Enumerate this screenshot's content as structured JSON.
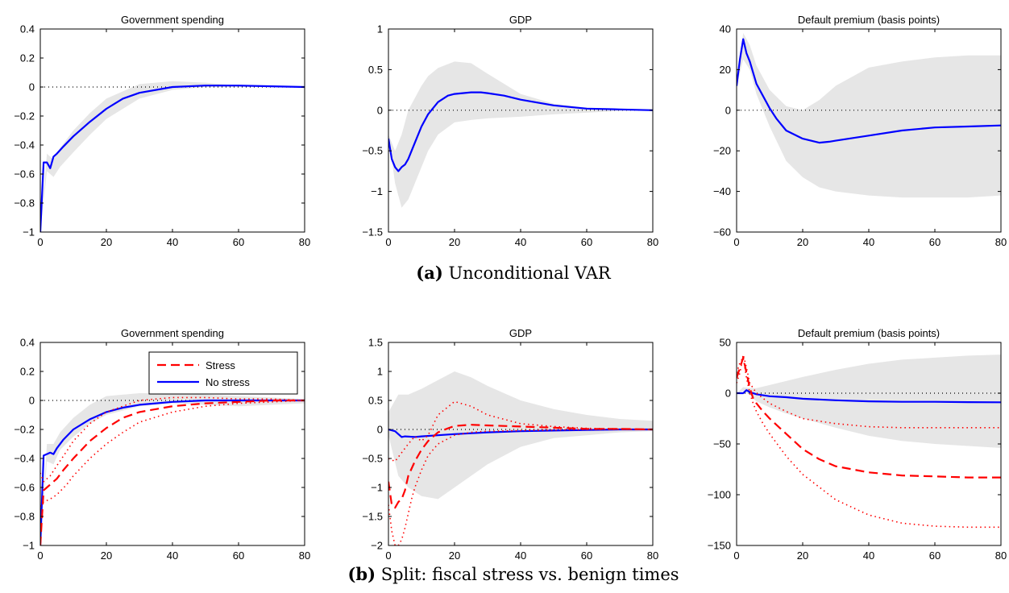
{
  "figure": {
    "caption_a_label": "(a)",
    "caption_a_text": "Unconditional VAR",
    "caption_b_label": "(b)",
    "caption_b_text": "Split: fiscal stress vs. benign times"
  },
  "colors": {
    "stress": "#ff0000",
    "nostress": "#0000ff",
    "band": "#e6e6e6",
    "axis": "#000000"
  },
  "chart_data": [
    {
      "panel": "a",
      "type": "area",
      "title": "Government spending",
      "xlim": [
        0,
        80
      ],
      "xticks": [
        0,
        20,
        40,
        60,
        80
      ],
      "ylim": [
        -1,
        0.4
      ],
      "yticks": [
        -1,
        -0.8,
        -0.6,
        -0.4,
        -0.2,
        0,
        0.2,
        0.4
      ],
      "yticklabels": [
        "−1",
        "−0.8",
        "−0.6",
        "−0.4",
        "−0.2",
        "0",
        "0.2",
        "0.4"
      ],
      "zero_line": true,
      "band": {
        "x": [
          0,
          2,
          4,
          6,
          10,
          15,
          20,
          30,
          40,
          50,
          60,
          70,
          80
        ],
        "lower": [
          -1,
          -0.58,
          -0.62,
          -0.55,
          -0.45,
          -0.33,
          -0.22,
          -0.08,
          -0.02,
          0,
          0,
          0,
          0
        ],
        "upper": [
          -1,
          -0.46,
          -0.5,
          -0.42,
          -0.3,
          -0.18,
          -0.08,
          0.02,
          0.04,
          0.03,
          0.01,
          0.005,
          0
        ]
      },
      "series": [
        {
          "color": "#0000ff",
          "style": "solid",
          "x": [
            0,
            1,
            2,
            3,
            4,
            5,
            7,
            10,
            15,
            20,
            25,
            30,
            40,
            50,
            60,
            70,
            80
          ],
          "y": [
            -1,
            -0.52,
            -0.52,
            -0.56,
            -0.48,
            -0.46,
            -0.41,
            -0.34,
            -0.24,
            -0.15,
            -0.08,
            -0.04,
            0.0,
            0.01,
            0.01,
            0.005,
            0
          ]
        }
      ]
    },
    {
      "panel": "a",
      "type": "area",
      "title": "GDP",
      "xlim": [
        0,
        80
      ],
      "xticks": [
        0,
        20,
        40,
        60,
        80
      ],
      "ylim": [
        -1.5,
        1
      ],
      "yticks": [
        -1.5,
        -1,
        -0.5,
        0,
        0.5,
        1
      ],
      "yticklabels": [
        "−1.5",
        "−1",
        "−0.5",
        "0",
        "0.5",
        "1"
      ],
      "zero_line": true,
      "band": {
        "x": [
          0,
          2,
          4,
          6,
          8,
          10,
          12,
          15,
          20,
          25,
          30,
          40,
          50,
          60,
          70,
          80
        ],
        "lower": [
          -0.3,
          -0.9,
          -1.2,
          -1.1,
          -0.9,
          -0.7,
          -0.5,
          -0.3,
          -0.15,
          -0.12,
          -0.1,
          -0.08,
          -0.05,
          -0.03,
          -0.01,
          0
        ],
        "upper": [
          -0.3,
          -0.5,
          -0.3,
          0.0,
          0.15,
          0.3,
          0.42,
          0.52,
          0.6,
          0.58,
          0.45,
          0.2,
          0.08,
          0.03,
          0.01,
          0
        ]
      },
      "series": [
        {
          "color": "#0000ff",
          "style": "solid",
          "x": [
            0,
            1,
            2,
            3,
            4,
            5,
            6,
            8,
            10,
            12,
            15,
            18,
            20,
            25,
            28,
            30,
            35,
            40,
            50,
            60,
            70,
            80
          ],
          "y": [
            -0.35,
            -0.6,
            -0.7,
            -0.75,
            -0.7,
            -0.67,
            -0.6,
            -0.4,
            -0.2,
            -0.05,
            0.1,
            0.18,
            0.2,
            0.22,
            0.22,
            0.21,
            0.18,
            0.13,
            0.06,
            0.02,
            0.01,
            0
          ]
        }
      ]
    },
    {
      "panel": "a",
      "type": "area",
      "title": "Default premium (basis points)",
      "xlim": [
        0,
        80
      ],
      "xticks": [
        0,
        20,
        40,
        60,
        80
      ],
      "ylim": [
        -60,
        40
      ],
      "yticks": [
        -60,
        -40,
        -20,
        0,
        20,
        40
      ],
      "yticklabels": [
        "−60",
        "−40",
        "−20",
        "0",
        "20",
        "40"
      ],
      "zero_line": true,
      "band": {
        "x": [
          0,
          2,
          4,
          6,
          10,
          15,
          20,
          25,
          30,
          40,
          50,
          60,
          70,
          80
        ],
        "lower": [
          12,
          25,
          20,
          8,
          -8,
          -25,
          -33,
          -38,
          -40,
          -42,
          -43,
          -43,
          -43,
          -42
        ],
        "upper": [
          12,
          38,
          32,
          22,
          10,
          2,
          0,
          5,
          12,
          21,
          24,
          26,
          27,
          27
        ]
      },
      "series": [
        {
          "color": "#0000ff",
          "style": "solid",
          "x": [
            0,
            1,
            2,
            3,
            4,
            6,
            8,
            10,
            12,
            15,
            20,
            25,
            28,
            30,
            40,
            50,
            60,
            70,
            80
          ],
          "y": [
            12,
            25,
            35,
            28,
            24,
            13,
            7,
            1,
            -4,
            -10,
            -14,
            -16,
            -15.5,
            -15,
            -12.5,
            -10,
            -8.5,
            -8,
            -7.5
          ]
        }
      ]
    },
    {
      "panel": "b",
      "type": "area",
      "title": "Government spending",
      "xlim": [
        0,
        80
      ],
      "xticks": [
        0,
        20,
        40,
        60,
        80
      ],
      "ylim": [
        -1,
        0.4
      ],
      "yticks": [
        -1,
        -0.8,
        -0.6,
        -0.4,
        -0.2,
        0,
        0.2,
        0.4
      ],
      "yticklabels": [
        "−1",
        "−0.8",
        "−0.6",
        "−0.4",
        "−0.2",
        "0",
        "0.2",
        "0.4"
      ],
      "zero_line": true,
      "legend": {
        "position": "top-right",
        "entries": [
          {
            "label": "Stress",
            "color": "#ff0000",
            "style": "dashed"
          },
          {
            "label": "No stress",
            "color": "#0000ff",
            "style": "solid"
          }
        ]
      },
      "band": {
        "x": [
          0,
          2,
          4,
          6,
          10,
          15,
          20,
          30,
          40,
          50,
          60,
          70,
          80
        ],
        "lower": [
          -1,
          -0.42,
          -0.44,
          -0.34,
          -0.25,
          -0.16,
          -0.1,
          -0.04,
          -0.02,
          -0.03,
          -0.04,
          -0.03,
          -0.02
        ],
        "upper": [
          -1,
          -0.3,
          -0.3,
          -0.22,
          -0.12,
          -0.03,
          0.03,
          0.05,
          0.05,
          0.04,
          0.03,
          0.02,
          0.01
        ]
      },
      "series": [
        {
          "color": "#0000ff",
          "style": "solid",
          "name": "No stress",
          "x": [
            0,
            1,
            2,
            3,
            4,
            5,
            7,
            10,
            15,
            20,
            25,
            30,
            40,
            50,
            60,
            70,
            80
          ],
          "y": [
            -1,
            -0.38,
            -0.37,
            -0.36,
            -0.37,
            -0.33,
            -0.27,
            -0.2,
            -0.13,
            -0.08,
            -0.05,
            -0.03,
            -0.01,
            0,
            0,
            0,
            0
          ]
        },
        {
          "color": "#ff0000",
          "style": "dashed",
          "name": "Stress",
          "x": [
            0,
            1,
            2,
            3,
            4,
            5,
            7,
            10,
            15,
            20,
            25,
            30,
            40,
            50,
            60,
            70,
            80
          ],
          "y": [
            -1,
            -0.62,
            -0.6,
            -0.58,
            -0.56,
            -0.54,
            -0.48,
            -0.4,
            -0.28,
            -0.19,
            -0.12,
            -0.08,
            -0.04,
            -0.02,
            -0.01,
            0,
            0
          ]
        },
        {
          "color": "#ff0000",
          "style": "dotted",
          "x": [
            0,
            1,
            3,
            5,
            8,
            10,
            15,
            20,
            25,
            30,
            40,
            50,
            60,
            70,
            80
          ],
          "y": [
            -0.5,
            -0.56,
            -0.52,
            -0.45,
            -0.35,
            -0.28,
            -0.16,
            -0.08,
            -0.04,
            0,
            0.02,
            0.02,
            0.01,
            0.01,
            0
          ]
        },
        {
          "color": "#ff0000",
          "style": "dotted",
          "x": [
            0,
            1,
            3,
            5,
            8,
            10,
            15,
            20,
            25,
            30,
            40,
            50,
            60,
            70,
            80
          ],
          "y": [
            -0.73,
            -0.7,
            -0.68,
            -0.65,
            -0.58,
            -0.52,
            -0.4,
            -0.3,
            -0.22,
            -0.15,
            -0.08,
            -0.04,
            -0.02,
            -0.01,
            0
          ]
        }
      ]
    },
    {
      "panel": "b",
      "type": "area",
      "title": "GDP",
      "xlim": [
        0,
        80
      ],
      "xticks": [
        0,
        20,
        40,
        60,
        80
      ],
      "ylim": [
        -2,
        1.5
      ],
      "yticks": [
        -2,
        -1.5,
        -1,
        -0.5,
        0,
        0.5,
        1,
        1.5
      ],
      "yticklabels": [
        "−2",
        "−1.5",
        "−1",
        "−0.5",
        "0",
        "0.5",
        "1",
        "1.5"
      ],
      "zero_line": true,
      "band": {
        "x": [
          0,
          3,
          6,
          10,
          15,
          20,
          25,
          30,
          40,
          50,
          60,
          70,
          80
        ],
        "lower": [
          -0.1,
          -0.8,
          -1.0,
          -1.15,
          -1.2,
          -1.0,
          -0.8,
          -0.6,
          -0.3,
          -0.15,
          -0.1,
          -0.05,
          -0.03
        ],
        "upper": [
          0.3,
          0.6,
          0.6,
          0.7,
          0.85,
          1.0,
          0.9,
          0.75,
          0.5,
          0.35,
          0.25,
          0.18,
          0.15
        ]
      },
      "series": [
        {
          "color": "#0000ff",
          "style": "solid",
          "x": [
            0,
            2,
            4,
            5,
            8,
            10,
            15,
            20,
            30,
            40,
            50,
            60,
            70,
            80
          ],
          "y": [
            0,
            -0.03,
            -0.13,
            -0.12,
            -0.13,
            -0.12,
            -0.1,
            -0.08,
            -0.05,
            -0.03,
            -0.02,
            -0.01,
            0,
            0
          ]
        },
        {
          "color": "#ff0000",
          "style": "dashed",
          "x": [
            0,
            1,
            2,
            3,
            4,
            5,
            6,
            8,
            10,
            12,
            15,
            18,
            20,
            25,
            30,
            40,
            50,
            60,
            70,
            80
          ],
          "y": [
            -0.9,
            -1.3,
            -1.35,
            -1.25,
            -1.2,
            -1.05,
            -0.8,
            -0.55,
            -0.35,
            -0.2,
            -0.05,
            0.02,
            0.06,
            0.08,
            0.07,
            0.05,
            0.03,
            0.01,
            0.01,
            0
          ]
        },
        {
          "color": "#ff0000",
          "style": "dotted",
          "x": [
            0,
            2,
            4,
            6,
            8,
            10,
            12,
            15,
            20,
            25,
            30,
            40,
            50,
            60,
            70,
            80
          ],
          "y": [
            -0.5,
            -0.55,
            -0.4,
            -0.25,
            -0.12,
            -0.2,
            -0.1,
            0.25,
            0.48,
            0.4,
            0.25,
            0.1,
            0.05,
            0.02,
            0.01,
            0
          ]
        },
        {
          "color": "#ff0000",
          "style": "dotted",
          "x": [
            0,
            1,
            2,
            3,
            4,
            5,
            6,
            7,
            8,
            10,
            12,
            15,
            20,
            25,
            30,
            40,
            50,
            60,
            70,
            80
          ],
          "y": [
            -1.3,
            -1.75,
            -2.0,
            -2.0,
            -1.9,
            -1.7,
            -1.45,
            -1.2,
            -1.0,
            -0.7,
            -0.45,
            -0.25,
            -0.1,
            -0.05,
            -0.03,
            -0.02,
            -0.01,
            0,
            0,
            0
          ]
        }
      ]
    },
    {
      "panel": "b",
      "type": "area",
      "title": "Default premium (basis points)",
      "xlim": [
        0,
        80
      ],
      "xticks": [
        0,
        20,
        40,
        60,
        80
      ],
      "ylim": [
        -150,
        50
      ],
      "yticks": [
        -150,
        -100,
        -50,
        0,
        50
      ],
      "yticklabels": [
        "−150",
        "−100",
        "−50",
        "0",
        "50"
      ],
      "zero_line": true,
      "band": {
        "x": [
          0,
          2,
          4,
          6,
          10,
          15,
          20,
          30,
          40,
          50,
          60,
          70,
          80
        ],
        "lower": [
          0,
          2,
          -2,
          -8,
          -14,
          -20,
          -25,
          -34,
          -42,
          -47,
          -50,
          -52,
          -54
        ],
        "upper": [
          0,
          6,
          5,
          5,
          8,
          12,
          16,
          23,
          29,
          33,
          35,
          37,
          38
        ]
      },
      "series": [
        {
          "color": "#0000ff",
          "style": "solid",
          "x": [
            0,
            1,
            2,
            3,
            4,
            6,
            10,
            15,
            20,
            30,
            40,
            50,
            60,
            70,
            80
          ],
          "y": [
            0,
            0,
            0,
            3,
            1,
            -1,
            -3,
            -4,
            -5.5,
            -7,
            -8,
            -8.5,
            -8.5,
            -8.8,
            -9
          ]
        },
        {
          "color": "#ff0000",
          "style": "dashed",
          "x": [
            0,
            1,
            2,
            3,
            4,
            5,
            6,
            8,
            10,
            15,
            20,
            25,
            30,
            40,
            50,
            60,
            70,
            80
          ],
          "y": [
            15,
            25,
            35,
            20,
            5,
            -5,
            -10,
            -18,
            -25,
            -40,
            -55,
            -65,
            -72,
            -78,
            -81,
            -82,
            -83,
            -83
          ]
        },
        {
          "color": "#ff0000",
          "style": "dotted",
          "x": [
            0,
            1,
            2,
            3,
            4,
            5,
            6,
            8,
            10,
            15,
            20,
            30,
            40,
            50,
            60,
            70,
            80
          ],
          "y": [
            10,
            20,
            38,
            25,
            10,
            5,
            0,
            -5,
            -10,
            -18,
            -25,
            -30,
            -33,
            -34,
            -34,
            -34,
            -34
          ]
        },
        {
          "color": "#ff0000",
          "style": "dotted",
          "x": [
            0,
            1,
            2,
            3,
            4,
            5,
            6,
            8,
            10,
            15,
            20,
            30,
            40,
            50,
            60,
            70,
            80
          ],
          "y": [
            20,
            30,
            35,
            15,
            0,
            -10,
            -18,
            -30,
            -40,
            -62,
            -80,
            -105,
            -120,
            -128,
            -131,
            -132,
            -132
          ]
        }
      ]
    }
  ]
}
